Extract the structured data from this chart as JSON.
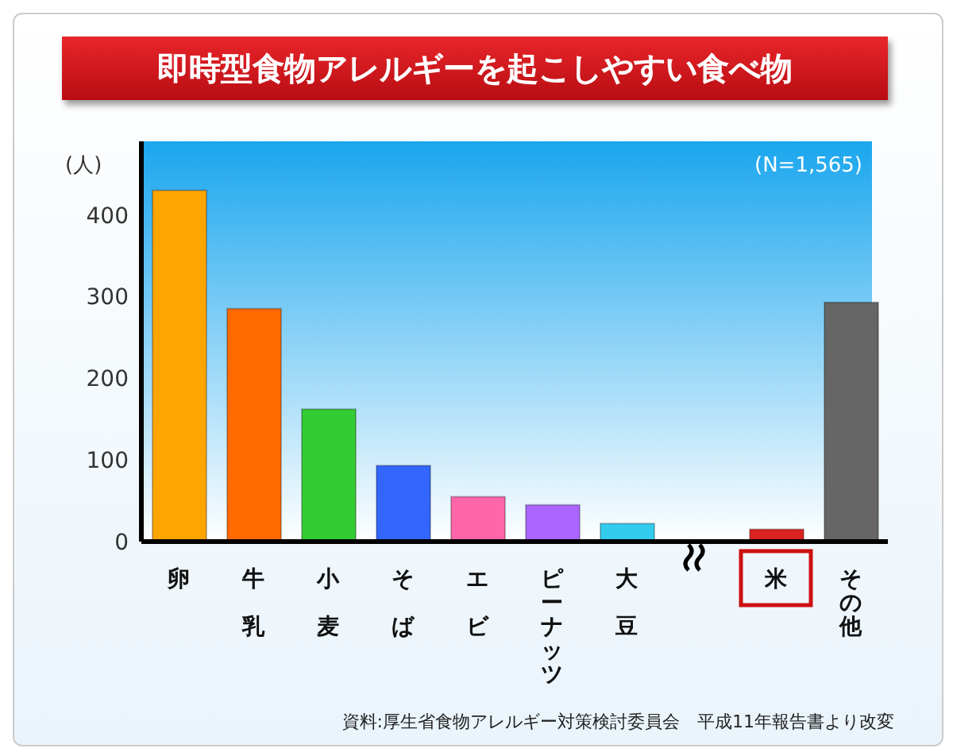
{
  "chart_data": {
    "type": "bar",
    "title": "即時型食物アレルギーを起こしやすい食べ物",
    "ylabel": "(人)",
    "categories": [
      "卵",
      "牛乳",
      "小麦",
      "そば",
      "エビ",
      "ピーナッツ",
      "大豆",
      null,
      "米",
      "その他"
    ],
    "values": [
      430,
      285,
      162,
      93,
      55,
      45,
      22,
      null,
      15,
      293
    ],
    "colors": [
      "#ffa500",
      "#ff6a00",
      "#33cc33",
      "#3366ff",
      "#ff66aa",
      "#aa66ff",
      "#33ccee",
      "#cccccc",
      "#dd2222",
      "#666666"
    ],
    "ylim": [
      0,
      490
    ],
    "yticks": [
      0,
      100,
      200,
      300,
      400
    ],
    "grid": false,
    "legend": false,
    "annotations": [
      "(N=1,565)",
      "資料:厚生省食物アレルギー対策検討委員会　平成11年報告書より改変"
    ]
  }
}
